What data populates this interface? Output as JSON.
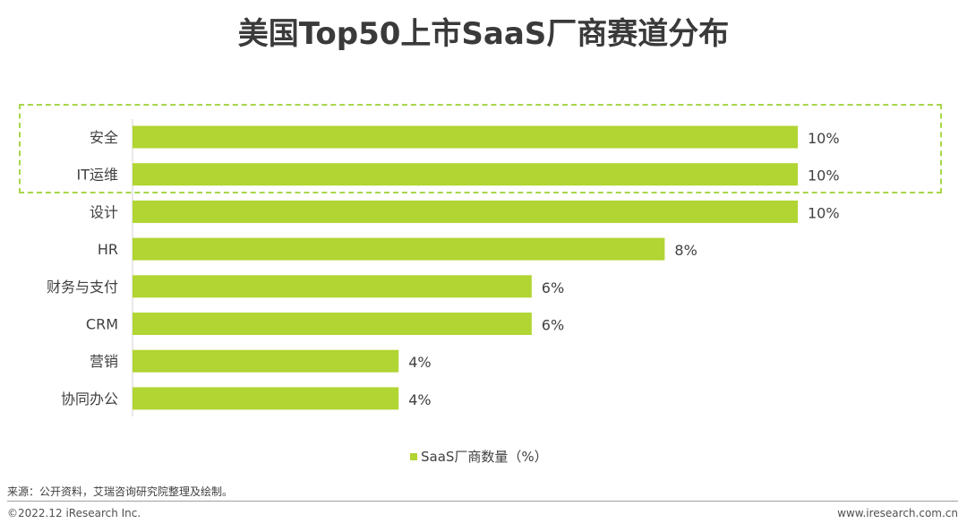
{
  "title": "美国Top50上市SaaS厂商赛道分布",
  "chart_data": {
    "type": "bar",
    "orientation": "horizontal",
    "categories": [
      "安全",
      "IT运维",
      "设计",
      "HR",
      "财务与支付",
      "CRM",
      "营销",
      "协同办公"
    ],
    "values": [
      10,
      10,
      10,
      8,
      6,
      6,
      4,
      4
    ],
    "value_labels": [
      "10%",
      "10%",
      "10%",
      "8%",
      "6%",
      "6%",
      "4%",
      "4%"
    ],
    "xlim": [
      0,
      10
    ],
    "series_name": "SaaS厂商数量（%）",
    "bar_color": "#b1d532",
    "highlighted_categories": [
      "安全",
      "IT运维"
    ],
    "highlight_color": "#a8d64a",
    "grid": false,
    "legend_position": "bottom-center"
  },
  "footer": {
    "source": "来源：公开资料，艾瑞咨询研究院整理及绘制。",
    "copyright": "©2022.12 iResearch Inc.",
    "website": "www.iresearch.com.cn"
  }
}
